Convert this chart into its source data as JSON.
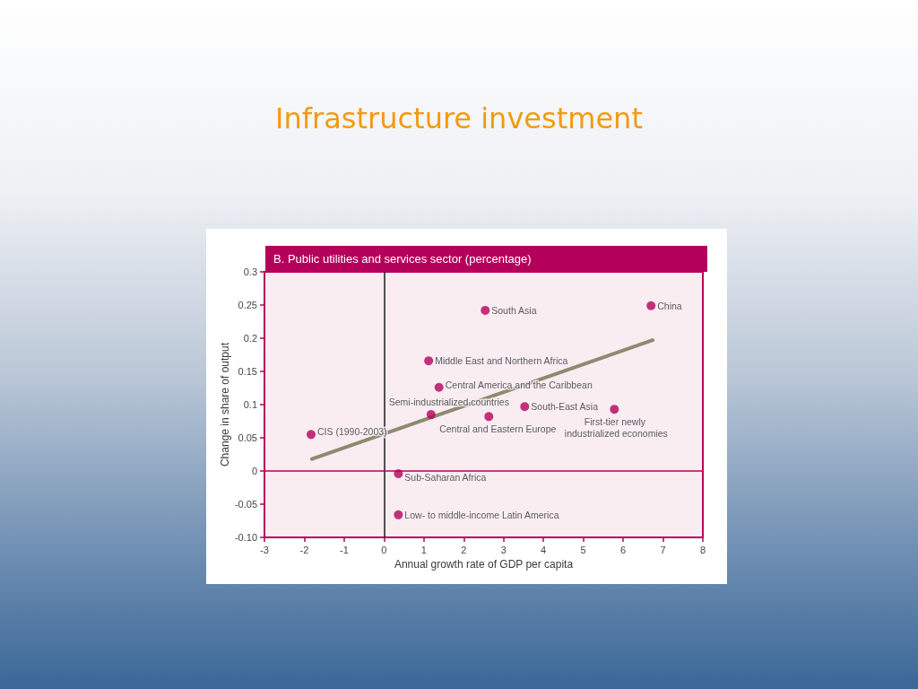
{
  "chart_data": {
    "type": "scatter",
    "title": "Infrastructure investment",
    "subtitle": "B. Public utilities and services sector (percentage)",
    "xlabel": "Annual growth rate of GDP per capita",
    "ylabel": "Change in share of output",
    "xlim": [
      -3,
      8
    ],
    "xticks": [
      -3,
      -2,
      -1,
      0,
      1,
      2,
      3,
      4,
      5,
      6,
      7,
      8
    ],
    "ylim": [
      -0.1,
      0.3
    ],
    "yticks": [
      {
        "value": -0.1,
        "label": "-0.10"
      },
      -0.05,
      0,
      0.05,
      0.1,
      0.15,
      0.2,
      0.25,
      0.3
    ],
    "grid": false,
    "legend": false,
    "marker": "circle",
    "series": [
      {
        "name": "South Asia",
        "color": "#b5005b",
        "x": [
          2.54
        ],
        "values": [
          0.242
        ]
      },
      {
        "name": "China",
        "color": "#b5005b",
        "x": [
          6.7
        ],
        "values": [
          0.249
        ]
      },
      {
        "name": "Middle East and Northern Africa",
        "color": "#b5005b",
        "x": [
          1.12
        ],
        "values": [
          0.166
        ]
      },
      {
        "name": "Central America and the Caribbean",
        "color": "#b5005b",
        "x": [
          1.38
        ],
        "values": [
          0.126
        ]
      },
      {
        "name": "Semi-industrialized countries",
        "color": "#b5005b",
        "x": [
          1.18
        ],
        "values": [
          0.085
        ]
      },
      {
        "name": "South-East Asia",
        "color": "#b5005b",
        "x": [
          3.53
        ],
        "values": [
          0.097
        ]
      },
      {
        "name": "First-tier newly industrialized economies",
        "color": "#b5005b",
        "x": [
          5.78
        ],
        "values": [
          0.093
        ]
      },
      {
        "name": "Central and Eastern Europe",
        "color": "#b5005b",
        "x": [
          2.63
        ],
        "values": [
          0.082
        ]
      },
      {
        "name": "CIS (1990-2003)",
        "color": "#b5005b",
        "x": [
          -1.83
        ],
        "values": [
          0.055
        ]
      },
      {
        "name": "Sub-Saharan Africa",
        "color": "#b5005b",
        "x": [
          0.36
        ],
        "values": [
          -0.004
        ]
      },
      {
        "name": "Low- to middle-income Latin America",
        "color": "#b5005b",
        "x": [
          0.36
        ],
        "values": [
          -0.066
        ]
      },
      {
        "type": "line",
        "color": "#8f8a70",
        "marker": "none",
        "x": [
          -1.81,
          6.74
        ],
        "values": [
          0.018,
          0.197
        ]
      }
    ],
    "ref_lines": [
      {
        "axis": "x",
        "value": 0,
        "color": "#1a1a1a"
      },
      {
        "axis": "y",
        "value": 0,
        "color": "#b5005b"
      }
    ]
  }
}
